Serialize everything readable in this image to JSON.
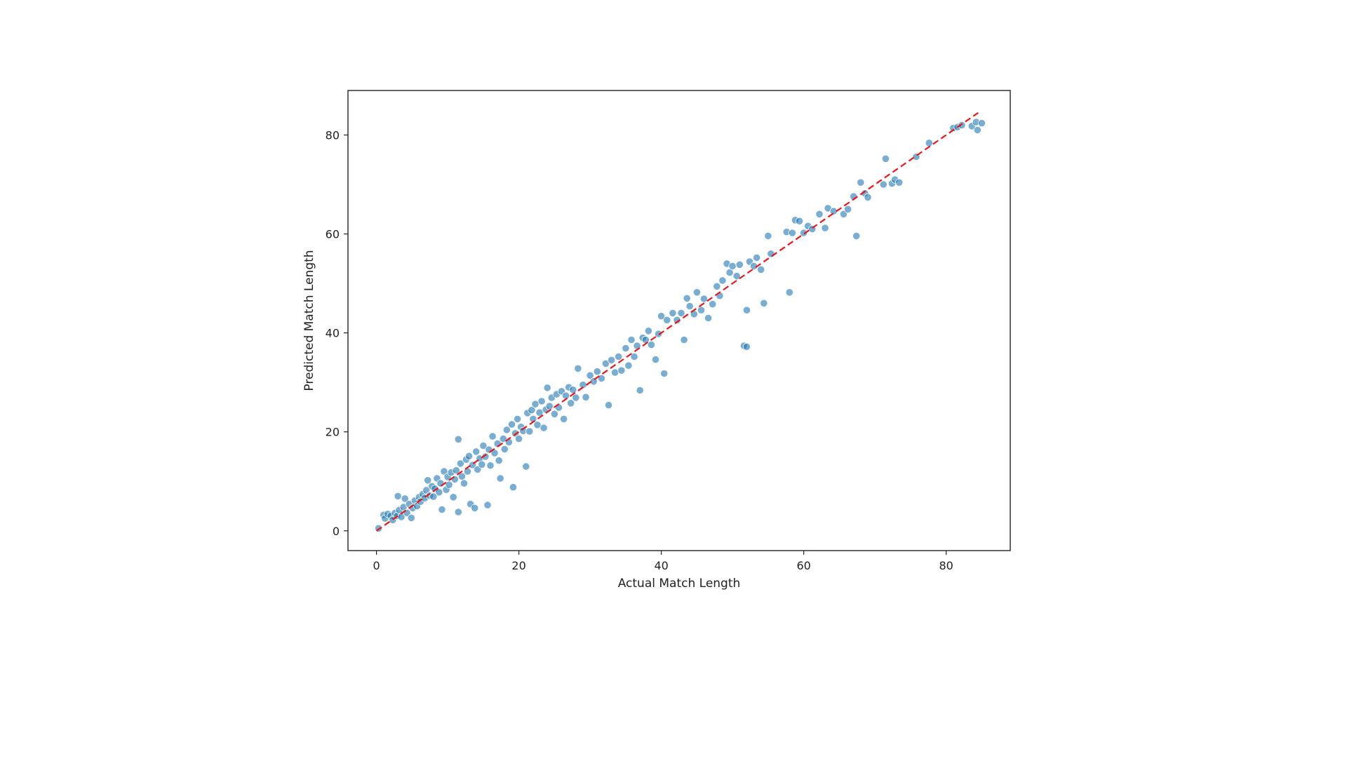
{
  "chart_data": {
    "type": "scatter",
    "title": "",
    "xlabel": "Actual Match Length",
    "ylabel": "Predicted Match Length",
    "xlim": [
      -4,
      89
    ],
    "ylim": [
      -4,
      89
    ],
    "x_ticks": [
      0,
      20,
      40,
      60,
      80
    ],
    "y_ticks": [
      0,
      20,
      40,
      60,
      80
    ],
    "x_tick_labels": [
      "0",
      "20",
      "40",
      "60",
      "80"
    ],
    "y_tick_labels": [
      "0",
      "20",
      "40",
      "60",
      "80"
    ],
    "grid": false,
    "legend": "none",
    "point_color": "#1f77b4",
    "reference_line": {
      "style": "dashed",
      "color": "#e31a1c",
      "from": [
        0,
        0
      ],
      "to": [
        84.5,
        84.5
      ]
    },
    "points": [
      [
        0.3,
        0.5
      ],
      [
        1.0,
        3.2
      ],
      [
        1.2,
        2.5
      ],
      [
        1.6,
        3.4
      ],
      [
        2.0,
        3.0
      ],
      [
        2.3,
        2.2
      ],
      [
        2.6,
        3.6
      ],
      [
        2.9,
        3.0
      ],
      [
        3.0,
        7.0
      ],
      [
        3.2,
        4.2
      ],
      [
        3.5,
        2.8
      ],
      [
        3.8,
        4.8
      ],
      [
        4.0,
        6.5
      ],
      [
        4.3,
        3.6
      ],
      [
        4.6,
        5.4
      ],
      [
        4.9,
        2.6
      ],
      [
        5.1,
        4.6
      ],
      [
        5.4,
        6.1
      ],
      [
        5.7,
        5.0
      ],
      [
        6.0,
        6.8
      ],
      [
        6.2,
        5.9
      ],
      [
        6.5,
        7.4
      ],
      [
        6.8,
        6.6
      ],
      [
        7.0,
        8.2
      ],
      [
        7.2,
        10.2
      ],
      [
        7.5,
        7.1
      ],
      [
        7.8,
        9.0
      ],
      [
        8.0,
        6.9
      ],
      [
        8.2,
        8.5
      ],
      [
        8.5,
        10.6
      ],
      [
        8.8,
        7.8
      ],
      [
        9.0,
        9.6
      ],
      [
        9.2,
        4.3
      ],
      [
        9.5,
        12.0
      ],
      [
        9.8,
        8.3
      ],
      [
        10.0,
        10.9
      ],
      [
        10.2,
        9.3
      ],
      [
        10.5,
        11.8
      ],
      [
        10.8,
        6.8
      ],
      [
        11.0,
        10.4
      ],
      [
        11.2,
        12.2
      ],
      [
        11.5,
        18.5
      ],
      [
        11.5,
        3.8
      ],
      [
        11.8,
        13.6
      ],
      [
        12.0,
        11.0
      ],
      [
        12.3,
        9.6
      ],
      [
        12.6,
        14.4
      ],
      [
        12.8,
        12.0
      ],
      [
        13.0,
        15.1
      ],
      [
        13.2,
        5.4
      ],
      [
        13.5,
        13.3
      ],
      [
        13.8,
        4.6
      ],
      [
        14.0,
        16.0
      ],
      [
        14.2,
        12.4
      ],
      [
        14.5,
        14.6
      ],
      [
        14.8,
        13.4
      ],
      [
        15.0,
        17.2
      ],
      [
        15.3,
        15.0
      ],
      [
        15.6,
        5.2
      ],
      [
        15.8,
        16.4
      ],
      [
        16.0,
        13.2
      ],
      [
        16.3,
        19.1
      ],
      [
        16.6,
        15.7
      ],
      [
        17.0,
        17.6
      ],
      [
        17.2,
        14.2
      ],
      [
        17.4,
        10.6
      ],
      [
        17.8,
        18.6
      ],
      [
        18.0,
        16.5
      ],
      [
        18.3,
        20.4
      ],
      [
        18.6,
        17.9
      ],
      [
        19.0,
        21.5
      ],
      [
        19.2,
        8.8
      ],
      [
        19.5,
        19.7
      ],
      [
        19.8,
        22.6
      ],
      [
        20.0,
        18.6
      ],
      [
        20.3,
        21.0
      ],
      [
        20.6,
        20.2
      ],
      [
        21.0,
        13.0
      ],
      [
        21.2,
        23.8
      ],
      [
        21.5,
        20.1
      ],
      [
        21.8,
        24.4
      ],
      [
        22.0,
        22.6
      ],
      [
        22.3,
        25.6
      ],
      [
        22.6,
        21.4
      ],
      [
        22.9,
        23.9
      ],
      [
        23.2,
        26.2
      ],
      [
        23.5,
        20.8
      ],
      [
        23.8,
        24.5
      ],
      [
        24.0,
        28.9
      ],
      [
        24.3,
        25.2
      ],
      [
        24.6,
        26.9
      ],
      [
        25.0,
        23.6
      ],
      [
        25.3,
        27.6
      ],
      [
        25.6,
        24.9
      ],
      [
        26.0,
        28.2
      ],
      [
        26.3,
        22.6
      ],
      [
        26.6,
        27.3
      ],
      [
        27.0,
        29.0
      ],
      [
        27.3,
        25.8
      ],
      [
        27.6,
        28.5
      ],
      [
        28.0,
        26.9
      ],
      [
        28.3,
        32.8
      ],
      [
        29.0,
        29.5
      ],
      [
        29.4,
        27.0
      ],
      [
        30.0,
        31.4
      ],
      [
        30.5,
        30.2
      ],
      [
        31.0,
        32.2
      ],
      [
        31.6,
        30.8
      ],
      [
        32.2,
        33.8
      ],
      [
        32.6,
        25.4
      ],
      [
        33.0,
        34.5
      ],
      [
        33.5,
        32.0
      ],
      [
        34.0,
        35.2
      ],
      [
        34.4,
        32.4
      ],
      [
        35.0,
        36.9
      ],
      [
        35.4,
        33.4
      ],
      [
        35.8,
        38.6
      ],
      [
        36.2,
        35.2
      ],
      [
        36.6,
        37.4
      ],
      [
        37.0,
        28.4
      ],
      [
        37.4,
        39.0
      ],
      [
        37.8,
        38.6
      ],
      [
        38.2,
        40.4
      ],
      [
        38.6,
        37.6
      ],
      [
        39.2,
        34.6
      ],
      [
        39.6,
        39.8
      ],
      [
        40.0,
        43.4
      ],
      [
        40.4,
        31.8
      ],
      [
        40.8,
        42.6
      ],
      [
        41.6,
        44.0
      ],
      [
        42.2,
        42.6
      ],
      [
        42.8,
        44.0
      ],
      [
        43.2,
        38.6
      ],
      [
        43.6,
        47.0
      ],
      [
        44.0,
        45.4
      ],
      [
        44.6,
        43.8
      ],
      [
        45.0,
        48.2
      ],
      [
        45.6,
        44.6
      ],
      [
        46.0,
        46.9
      ],
      [
        46.6,
        43.0
      ],
      [
        47.2,
        45.8
      ],
      [
        47.8,
        49.4
      ],
      [
        48.2,
        47.5
      ],
      [
        48.6,
        50.6
      ],
      [
        49.2,
        54.0
      ],
      [
        49.6,
        52.2
      ],
      [
        50.0,
        53.5
      ],
      [
        50.6,
        51.5
      ],
      [
        51.0,
        53.8
      ],
      [
        51.6,
        37.4
      ],
      [
        52.0,
        44.6
      ],
      [
        52.0,
        37.2
      ],
      [
        52.4,
        54.4
      ],
      [
        53.0,
        53.5
      ],
      [
        53.4,
        55.2
      ],
      [
        54.0,
        52.8
      ],
      [
        54.4,
        46.0
      ],
      [
        55.0,
        59.6
      ],
      [
        55.4,
        56.0
      ],
      [
        57.6,
        60.4
      ],
      [
        58.0,
        48.2
      ],
      [
        58.4,
        60.2
      ],
      [
        58.8,
        62.8
      ],
      [
        59.4,
        62.6
      ],
      [
        60.0,
        60.2
      ],
      [
        60.6,
        61.6
      ],
      [
        61.2,
        61.0
      ],
      [
        62.2,
        64.0
      ],
      [
        63.0,
        61.2
      ],
      [
        63.4,
        65.2
      ],
      [
        64.2,
        64.6
      ],
      [
        65.6,
        64.0
      ],
      [
        66.2,
        65.0
      ],
      [
        67.0,
        67.6
      ],
      [
        67.4,
        59.6
      ],
      [
        68.0,
        70.4
      ],
      [
        68.6,
        68.2
      ],
      [
        69.0,
        67.4
      ],
      [
        71.2,
        70.0
      ],
      [
        71.5,
        75.2
      ],
      [
        72.4,
        70.2
      ],
      [
        72.8,
        71.0
      ],
      [
        73.4,
        70.4
      ],
      [
        75.8,
        75.6
      ],
      [
        77.6,
        78.4
      ],
      [
        81.0,
        81.4
      ],
      [
        81.6,
        81.6
      ],
      [
        82.2,
        82.0
      ],
      [
        83.6,
        81.8
      ],
      [
        84.2,
        82.6
      ],
      [
        84.4,
        81.0
      ],
      [
        85.0,
        82.4
      ]
    ]
  }
}
